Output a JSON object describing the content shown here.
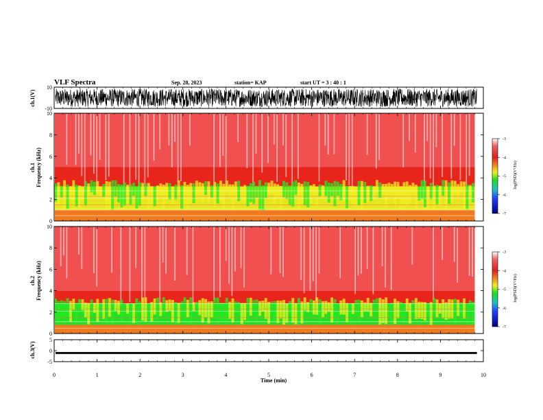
{
  "header": {
    "title": "VLF Spectra",
    "date": "Sep. 28, 2023",
    "station": "station= KAP",
    "start": "start  UT  =   3  : 40 : 1"
  },
  "colors": {
    "spec_bg": "#e8341e",
    "spec_hi": "#ffffff",
    "green": "#22ee22",
    "yellow": "#f0f020",
    "trace": "#000000"
  },
  "chart_data": [
    {
      "type": "line",
      "name": "ch1-waveform",
      "ylabel": "ch.1(V)",
      "ylim": [
        -10,
        10
      ],
      "y_ticks": [
        "10",
        "-10"
      ],
      "xlim": [
        0,
        10
      ],
      "note_visible": "noisy waveform spanning about -8 to 8 V"
    },
    {
      "type": "heatmap",
      "name": "ch1-spectrogram",
      "ylabel": "ch.1",
      "ylabel2": "Frequency (kHz)",
      "ylim": [
        0,
        10
      ],
      "y_ticks": [
        "0",
        "2",
        "4",
        "6",
        "8",
        "10"
      ],
      "xlim": [
        0,
        10
      ],
      "data_end_min": 9.8,
      "bands": [
        {
          "from_khz": 0,
          "to_khz": 1.0,
          "level": -4.2
        },
        {
          "from_khz": 1.0,
          "to_khz": 3.2,
          "level": -4.7
        },
        {
          "from_khz": 3.2,
          "to_khz": 5.0,
          "level": -3.9
        },
        {
          "from_khz": 5.0,
          "to_khz": 10,
          "level": -3.5
        }
      ],
      "colorbar": {
        "label": "log(PSD)(V²/Hz)",
        "range": [
          -7,
          -3
        ],
        "ticks": [
          "-3",
          "-4",
          "-5",
          "-6",
          "-7"
        ]
      }
    },
    {
      "type": "heatmap",
      "name": "ch2-spectrogram",
      "ylabel": "ch.2",
      "ylabel2": "Frequency (kHz)",
      "ylim": [
        0,
        10
      ],
      "y_ticks": [
        "0",
        "2",
        "4",
        "6",
        "8",
        "10"
      ],
      "xlim": [
        0,
        10
      ],
      "data_end_min": 9.8,
      "bands": [
        {
          "from_khz": 0,
          "to_khz": 0.8,
          "level": -4.3
        },
        {
          "from_khz": 0.8,
          "to_khz": 2.8,
          "level": -5.0
        },
        {
          "from_khz": 2.8,
          "to_khz": 4.0,
          "level": -4.0
        },
        {
          "from_khz": 4.0,
          "to_khz": 10,
          "level": -3.5
        }
      ],
      "colorbar": {
        "label": "log(PSD)(V²/Hz)",
        "range": [
          -7,
          -3
        ],
        "ticks": [
          "-3",
          "-4",
          "-5",
          "-6",
          "-7"
        ]
      }
    },
    {
      "type": "line",
      "name": "ch3-waveform",
      "ylabel": "ch.3(V)",
      "ylim": [
        -5,
        5
      ],
      "y_ticks": [
        "5",
        "0",
        "-5"
      ],
      "xlim": [
        0,
        10
      ],
      "note_visible": "flat thick trace near -1 V"
    }
  ],
  "x_axis": {
    "label": "Time (min)",
    "ticks": [
      "0",
      "1",
      "2",
      "3",
      "4",
      "5",
      "6",
      "7",
      "8",
      "9",
      "10"
    ]
  }
}
